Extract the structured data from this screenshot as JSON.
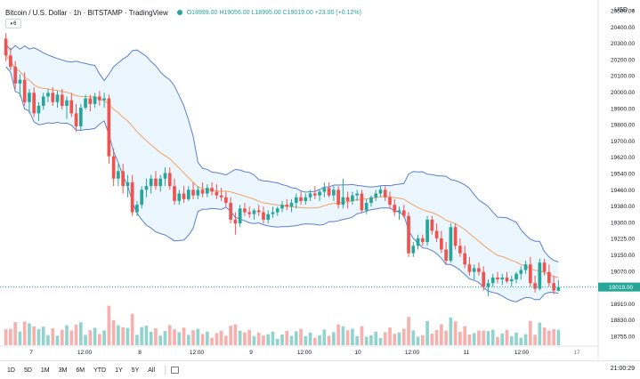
{
  "header": {
    "symbol_title": "Bitcoin / U.S. Dollar · 1h · BITSTAMP · TradingView",
    "ohlc": "O18999.00 H19056.00 L18995.00 C19019.00 +23.00 (+0.12%)",
    "indicator_badge": "6"
  },
  "price_axis": {
    "currency": "USD",
    "ticks": [
      "20500.00",
      "20400.00",
      "20300.00",
      "20200.00",
      "20100.00",
      "20000.00",
      "19900.00",
      "19800.00",
      "19700.00",
      "19620.00",
      "19540.00",
      "19460.00",
      "19380.00",
      "19300.00",
      "19225.00",
      "19150.00",
      "19070.00",
      "18990.00",
      "18910.00",
      "18830.00",
      "18755.00"
    ],
    "last_price_label": "19019.00",
    "last_price": 19019,
    "last_price_color": "#26a69a"
  },
  "time_axis": {
    "labels": [
      "7",
      "12:00",
      "8",
      "12:00",
      "9",
      "12:00",
      "10",
      "12:00",
      "11",
      "12:00"
    ],
    "extra": "17"
  },
  "bottom_bar": {
    "ranges": [
      "1D",
      "5D",
      "1M",
      "3M",
      "6M",
      "YTD",
      "1Y",
      "5Y",
      "All"
    ],
    "clock": "21:00:29"
  },
  "colors": {
    "up": "#26a69a",
    "down": "#ef5350",
    "band": "#5b7fcf",
    "band_fill": "#e3f2fd",
    "basis": "#f4a261",
    "vol_up": "#80cbc4",
    "vol_down": "#f5a3a1"
  },
  "chart_data": {
    "type": "candlestick",
    "ylim": [
      18755,
      20500
    ],
    "candles": [
      [
        20350,
        20380,
        20230,
        20260
      ],
      [
        20260,
        20300,
        20180,
        20200
      ],
      [
        20200,
        20230,
        20080,
        20110
      ],
      [
        20110,
        20160,
        20040,
        20130
      ],
      [
        20130,
        20170,
        19990,
        20010
      ],
      [
        20010,
        20080,
        19950,
        20060
      ],
      [
        20060,
        20090,
        19930,
        19950
      ],
      [
        19950,
        20010,
        19910,
        19990
      ],
      [
        19990,
        20060,
        19970,
        20040
      ],
      [
        20040,
        20080,
        20010,
        20060
      ],
      [
        20060,
        20090,
        19990,
        20010
      ],
      [
        20010,
        20070,
        19980,
        20050
      ],
      [
        20050,
        20080,
        19970,
        19990
      ],
      [
        19990,
        20040,
        19920,
        20020
      ],
      [
        20020,
        20060,
        19930,
        19950
      ],
      [
        19950,
        20000,
        19850,
        19880
      ],
      [
        19880,
        20000,
        19860,
        19980
      ],
      [
        19980,
        20050,
        19970,
        20030
      ],
      [
        20030,
        20050,
        19960,
        20000
      ],
      [
        20000,
        20060,
        19980,
        20040
      ],
      [
        20040,
        20070,
        19990,
        20020
      ],
      [
        20020,
        20060,
        19980,
        20030
      ],
      [
        20030,
        20050,
        19680,
        19720
      ],
      [
        19720,
        19760,
        19560,
        19600
      ],
      [
        19600,
        19680,
        19560,
        19640
      ],
      [
        19640,
        19680,
        19520,
        19560
      ],
      [
        19560,
        19620,
        19500,
        19580
      ],
      [
        19580,
        19620,
        19400,
        19420
      ],
      [
        19420,
        19480,
        19400,
        19460
      ],
      [
        19460,
        19560,
        19440,
        19540
      ],
      [
        19540,
        19600,
        19500,
        19560
      ],
      [
        19560,
        19620,
        19520,
        19600
      ],
      [
        19600,
        19640,
        19540,
        19560
      ],
      [
        19560,
        19620,
        19530,
        19600
      ],
      [
        19600,
        19660,
        19560,
        19630
      ],
      [
        19630,
        19660,
        19540,
        19560
      ],
      [
        19560,
        19600,
        19460,
        19480
      ],
      [
        19480,
        19540,
        19460,
        19520
      ],
      [
        19520,
        19560,
        19470,
        19490
      ],
      [
        19490,
        19560,
        19480,
        19540
      ],
      [
        19540,
        19580,
        19490,
        19510
      ],
      [
        19510,
        19560,
        19490,
        19540
      ],
      [
        19540,
        19580,
        19500,
        19520
      ],
      [
        19520,
        19570,
        19500,
        19550
      ],
      [
        19550,
        19580,
        19510,
        19530
      ],
      [
        19530,
        19570,
        19490,
        19510
      ],
      [
        19510,
        19550,
        19480,
        19500
      ],
      [
        19500,
        19530,
        19450,
        19470
      ],
      [
        19470,
        19500,
        19360,
        19380
      ],
      [
        19380,
        19420,
        19300,
        19360
      ],
      [
        19360,
        19460,
        19340,
        19440
      ],
      [
        19440,
        19470,
        19400,
        19420
      ],
      [
        19420,
        19450,
        19390,
        19410
      ],
      [
        19410,
        19440,
        19380,
        19430
      ],
      [
        19430,
        19460,
        19400,
        19420
      ],
      [
        19420,
        19450,
        19360,
        19380
      ],
      [
        19380,
        19430,
        19360,
        19410
      ],
      [
        19410,
        19450,
        19390,
        19420
      ],
      [
        19420,
        19450,
        19400,
        19440
      ],
      [
        19440,
        19480,
        19420,
        19460
      ],
      [
        19460,
        19490,
        19430,
        19450
      ],
      [
        19450,
        19490,
        19420,
        19470
      ],
      [
        19470,
        19520,
        19440,
        19500
      ],
      [
        19500,
        19530,
        19460,
        19480
      ],
      [
        19480,
        19520,
        19460,
        19500
      ],
      [
        19500,
        19540,
        19480,
        19520
      ],
      [
        19520,
        19560,
        19490,
        19510
      ],
      [
        19510,
        19540,
        19480,
        19530
      ],
      [
        19530,
        19580,
        19500,
        19550
      ],
      [
        19550,
        19580,
        19500,
        19510
      ],
      [
        19510,
        19560,
        19480,
        19540
      ],
      [
        19540,
        19560,
        19440,
        19460
      ],
      [
        19460,
        19600,
        19440,
        19500
      ],
      [
        19500,
        19530,
        19440,
        19480
      ],
      [
        19480,
        19530,
        19460,
        19510
      ],
      [
        19510,
        19540,
        19480,
        19520
      ],
      [
        19520,
        19540,
        19420,
        19430
      ],
      [
        19430,
        19490,
        19410,
        19470
      ],
      [
        19470,
        19510,
        19450,
        19500
      ],
      [
        19500,
        19540,
        19480,
        19520
      ],
      [
        19520,
        19560,
        19500,
        19540
      ],
      [
        19540,
        19560,
        19480,
        19500
      ],
      [
        19500,
        19530,
        19440,
        19460
      ],
      [
        19460,
        19490,
        19400,
        19420
      ],
      [
        19420,
        19450,
        19380,
        19430
      ],
      [
        19430,
        19460,
        19390,
        19400
      ],
      [
        19400,
        19420,
        19180,
        19200
      ],
      [
        19200,
        19260,
        19180,
        19240
      ],
      [
        19240,
        19300,
        19220,
        19280
      ],
      [
        19280,
        19300,
        19240,
        19260
      ],
      [
        19260,
        19400,
        19240,
        19380
      ],
      [
        19380,
        19400,
        19300,
        19320
      ],
      [
        19320,
        19360,
        19260,
        19280
      ],
      [
        19280,
        19320,
        19200,
        19220
      ],
      [
        19220,
        19260,
        19140,
        19160
      ],
      [
        19160,
        19360,
        19150,
        19340
      ],
      [
        19340,
        19360,
        19220,
        19240
      ],
      [
        19240,
        19280,
        19180,
        19200
      ],
      [
        19200,
        19240,
        19120,
        19140
      ],
      [
        19140,
        19180,
        19080,
        19100
      ],
      [
        19100,
        19140,
        19060,
        19120
      ],
      [
        19120,
        19150,
        19080,
        19100
      ],
      [
        19100,
        19130,
        19000,
        19020
      ],
      [
        19020,
        19060,
        18970,
        19040
      ],
      [
        19040,
        19090,
        19020,
        19070
      ],
      [
        19070,
        19100,
        19040,
        19060
      ],
      [
        19060,
        19090,
        19030,
        19070
      ],
      [
        19070,
        19100,
        19040,
        19050
      ],
      [
        19050,
        19080,
        19020,
        19060
      ],
      [
        19060,
        19100,
        19040,
        19090
      ],
      [
        19090,
        19130,
        19060,
        19110
      ],
      [
        19110,
        19160,
        19090,
        19140
      ],
      [
        19140,
        19180,
        19020,
        19040
      ],
      [
        19040,
        19080,
        18990,
        19010
      ],
      [
        19010,
        19170,
        19000,
        19150
      ],
      [
        19150,
        19170,
        19080,
        19100
      ],
      [
        19100,
        19140,
        19020,
        19040
      ],
      [
        19040,
        19080,
        18980,
        19000
      ],
      [
        18999,
        19056,
        18995,
        19019
      ]
    ]
  }
}
